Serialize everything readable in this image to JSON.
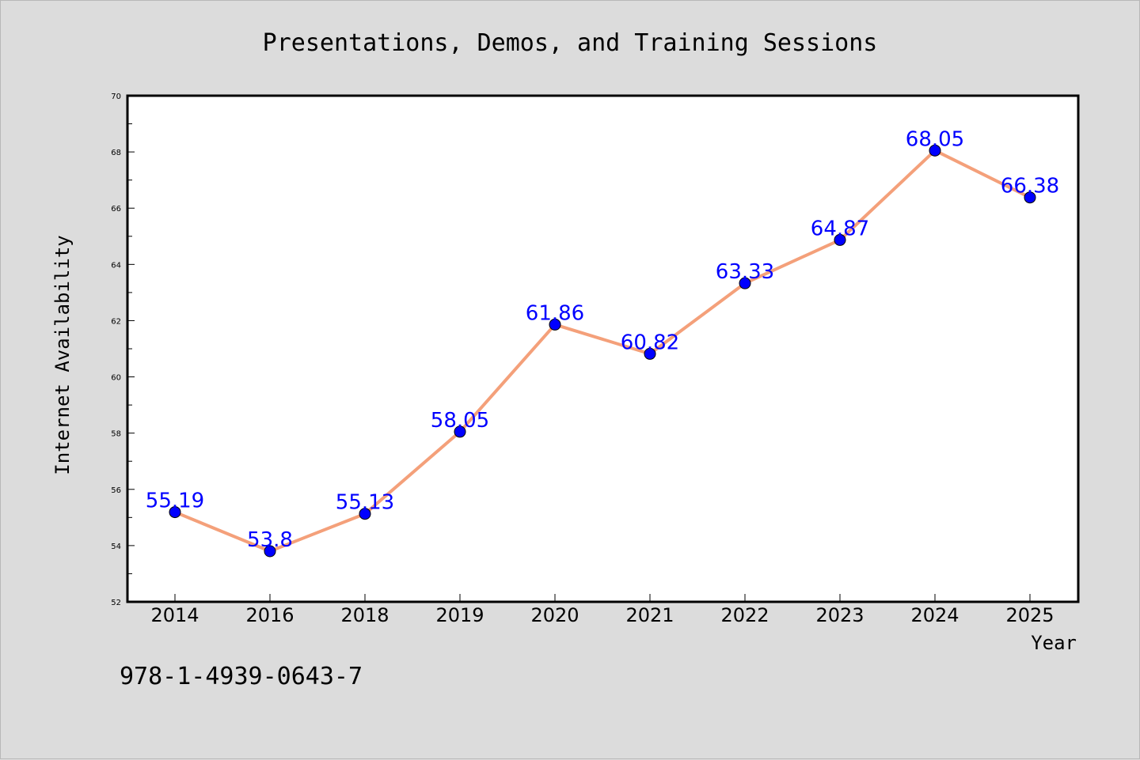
{
  "chart_data": {
    "type": "line",
    "title": "Presentations, Demos, and Training Sessions",
    "xlabel": "Year",
    "ylabel": "Internet Availability",
    "categories": [
      "2014",
      "2016",
      "2018",
      "2019",
      "2020",
      "2021",
      "2022",
      "2023",
      "2024",
      "2025"
    ],
    "values": [
      55.19,
      53.8,
      55.13,
      58.05,
      61.86,
      60.82,
      63.33,
      64.87,
      68.05,
      66.38
    ],
    "data_labels": [
      "55.19",
      "53.8",
      "55.13",
      "58.05",
      "61.86",
      "60.82",
      "63.33",
      "64.87",
      "68.05",
      "66.38"
    ],
    "ylim": [
      52,
      70
    ],
    "yticks": [
      "52",
      "54",
      "56",
      "58",
      "60",
      "62",
      "64",
      "66",
      "68",
      "70"
    ],
    "grid": false,
    "line_color": "#f4a07a",
    "marker_color": "#0000ff",
    "label_color": "#0000ff"
  },
  "footer": {
    "isbn": "978-1-4939-0643-7"
  }
}
